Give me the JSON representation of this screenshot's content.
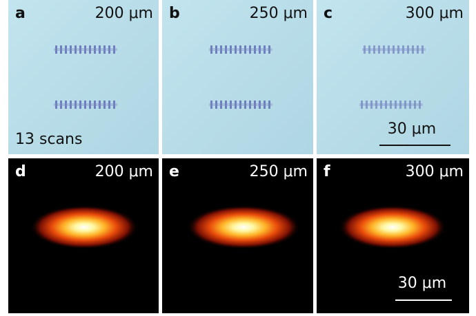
{
  "panels": [
    {
      "label": "a",
      "text": "200 μm"
    },
    {
      "label": "b",
      "text": "250 μm"
    },
    {
      "label": "c",
      "text": "300 μm"
    },
    {
      "label": "d",
      "text": "200 μm"
    },
    {
      "label": "e",
      "text": "250 μm"
    },
    {
      "label": "f",
      "text": "300 μm"
    }
  ],
  "annotation": "13 scans",
  "scale_bars": [
    "30 μm",
    "30 μm"
  ]
}
